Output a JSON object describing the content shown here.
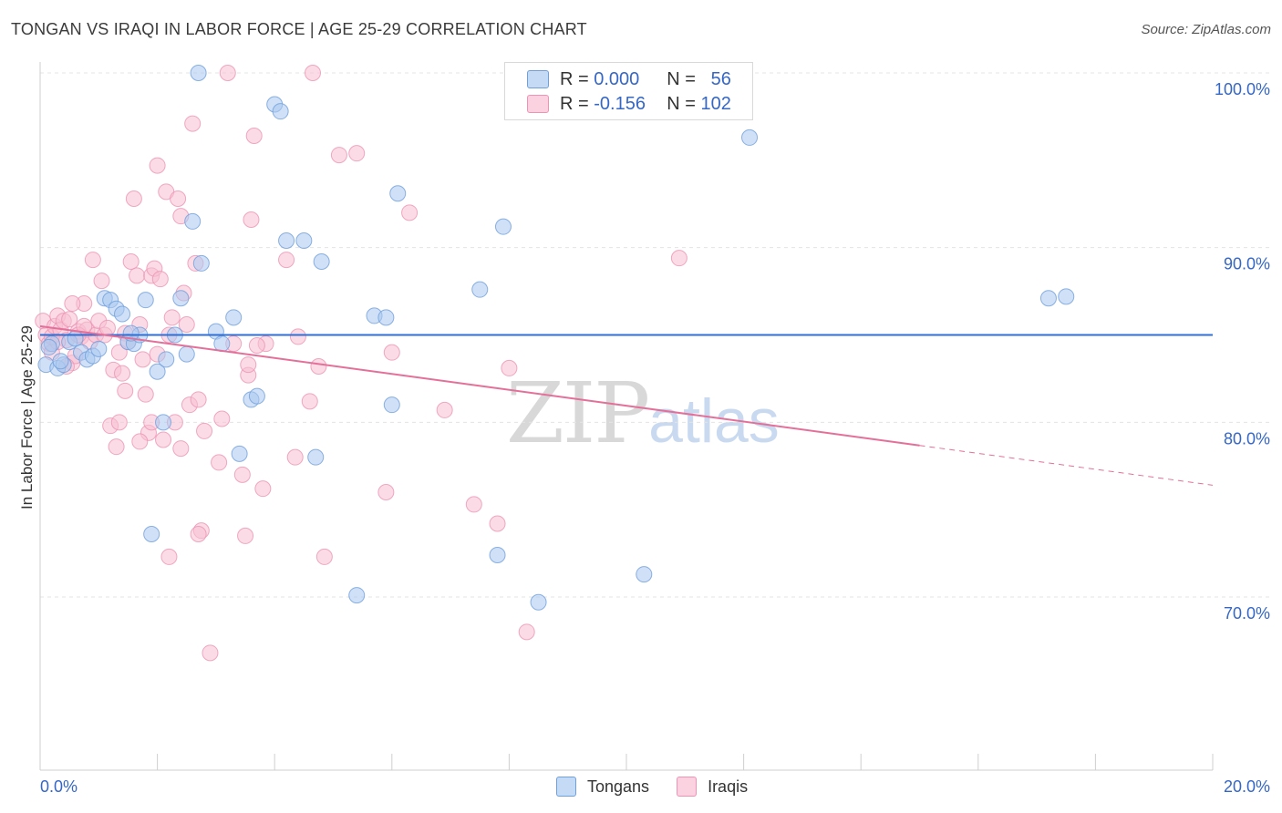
{
  "header": {
    "title": "TONGAN VS IRAQI IN LABOR FORCE | AGE 25-29 CORRELATION CHART",
    "source": "Source: ZipAtlas.com"
  },
  "legend": {
    "r_label": "R =",
    "n_label": "N =",
    "series": [
      {
        "name": "Tongans",
        "r": "0.000",
        "n": "56"
      },
      {
        "name": "Iraqis",
        "r": "-0.156",
        "n": "102"
      }
    ]
  },
  "watermark": {
    "zip": "ZIP",
    "atlas": "atlas"
  },
  "colors": {
    "tongans_fill": "#a9c8f0",
    "tongans_stroke": "#6f9fdc",
    "tongans_line": "#2f6fd6",
    "iraqis_fill": "#f7bfd2",
    "iraqis_stroke": "#ec94b4",
    "iraqis_line": "#e4709a",
    "grid": "#e4e4e4",
    "tick_label": "#3567c6"
  },
  "chart_data": {
    "type": "scatter",
    "title": "TONGAN VS IRAQI IN LABOR FORCE | AGE 25-29 CORRELATION CHART",
    "xlabel": "",
    "ylabel": "In Labor Force | Age 25-29",
    "xlim": [
      0,
      20
    ],
    "ylim": [
      60,
      102
    ],
    "x_tick_labels": [
      "0.0%",
      "20.0%"
    ],
    "y_ticks": [
      70,
      80,
      90,
      100
    ],
    "y_tick_labels": [
      "70.0%",
      "80.0%",
      "90.0%",
      "100.0%"
    ],
    "series": [
      {
        "name": "Tongans",
        "r": 0.0,
        "n": 56,
        "trend": {
          "x": [
            0,
            20
          ],
          "y": [
            85.0,
            85.0
          ],
          "dashed_from": null
        },
        "points": [
          [
            0.1,
            83.3
          ],
          [
            0.2,
            84.5
          ],
          [
            0.3,
            83.1
          ],
          [
            0.4,
            83.3
          ],
          [
            0.5,
            84.6
          ],
          [
            0.6,
            84.8
          ],
          [
            0.7,
            84.0
          ],
          [
            0.8,
            83.6
          ],
          [
            0.9,
            83.8
          ],
          [
            1.1,
            87.1
          ],
          [
            1.2,
            87.0
          ],
          [
            1.3,
            86.5
          ],
          [
            1.4,
            86.2
          ],
          [
            1.5,
            84.6
          ],
          [
            1.6,
            84.5
          ],
          [
            1.7,
            85.0
          ],
          [
            1.8,
            87.0
          ],
          [
            1.9,
            73.6
          ],
          [
            2.0,
            82.9
          ],
          [
            2.1,
            80.0
          ],
          [
            2.15,
            83.6
          ],
          [
            2.3,
            85.0
          ],
          [
            2.4,
            87.1
          ],
          [
            2.5,
            83.9
          ],
          [
            2.6,
            91.5
          ],
          [
            2.7,
            100.0
          ],
          [
            2.75,
            89.1
          ],
          [
            3.0,
            85.2
          ],
          [
            3.1,
            84.5
          ],
          [
            3.3,
            86.0
          ],
          [
            3.4,
            78.2
          ],
          [
            3.6,
            81.3
          ],
          [
            3.7,
            81.5
          ],
          [
            4.0,
            98.2
          ],
          [
            4.1,
            97.8
          ],
          [
            4.2,
            90.4
          ],
          [
            4.5,
            90.4
          ],
          [
            4.7,
            78.0
          ],
          [
            4.8,
            89.2
          ],
          [
            5.4,
            70.1
          ],
          [
            5.7,
            86.1
          ],
          [
            5.9,
            86.0
          ],
          [
            6.0,
            81.0
          ],
          [
            6.1,
            93.1
          ],
          [
            7.5,
            87.6
          ],
          [
            7.8,
            72.4
          ],
          [
            7.9,
            91.2
          ],
          [
            8.5,
            69.7
          ],
          [
            10.3,
            71.3
          ],
          [
            12.1,
            96.3
          ],
          [
            17.2,
            87.1
          ],
          [
            17.5,
            87.2
          ],
          [
            0.15,
            84.3
          ],
          [
            0.35,
            83.5
          ],
          [
            1.0,
            84.2
          ],
          [
            1.55,
            85.1
          ]
        ]
      },
      {
        "name": "Iraqis",
        "r": -0.156,
        "n": 102,
        "trend": {
          "x": [
            0,
            20
          ],
          "y": [
            85.5,
            76.4
          ],
          "dashed_from": 15.0
        },
        "points": [
          [
            0.05,
            85.8
          ],
          [
            0.1,
            85.0
          ],
          [
            0.15,
            84.5
          ],
          [
            0.2,
            84.9
          ],
          [
            0.25,
            85.5
          ],
          [
            0.3,
            86.1
          ],
          [
            0.35,
            85.3
          ],
          [
            0.4,
            85.8
          ],
          [
            0.45,
            84.7
          ],
          [
            0.5,
            85.9
          ],
          [
            0.55,
            83.4
          ],
          [
            0.6,
            83.8
          ],
          [
            0.65,
            85.2
          ],
          [
            0.7,
            84.9
          ],
          [
            0.75,
            86.8
          ],
          [
            0.8,
            85.3
          ],
          [
            0.85,
            84.6
          ],
          [
            0.9,
            89.3
          ],
          [
            0.95,
            85.0
          ],
          [
            1.0,
            85.8
          ],
          [
            1.05,
            88.1
          ],
          [
            1.1,
            85.0
          ],
          [
            1.15,
            85.4
          ],
          [
            1.2,
            79.8
          ],
          [
            1.25,
            83.0
          ],
          [
            1.3,
            78.6
          ],
          [
            1.35,
            84.0
          ],
          [
            1.4,
            82.8
          ],
          [
            1.45,
            85.1
          ],
          [
            1.5,
            84.6
          ],
          [
            1.55,
            89.2
          ],
          [
            1.6,
            92.8
          ],
          [
            1.65,
            88.4
          ],
          [
            1.7,
            85.6
          ],
          [
            1.75,
            83.6
          ],
          [
            1.8,
            81.6
          ],
          [
            1.85,
            79.4
          ],
          [
            1.9,
            88.4
          ],
          [
            1.95,
            88.8
          ],
          [
            2.0,
            94.7
          ],
          [
            2.05,
            88.2
          ],
          [
            2.1,
            79.0
          ],
          [
            2.15,
            93.2
          ],
          [
            2.2,
            85.0
          ],
          [
            2.25,
            86.0
          ],
          [
            2.3,
            80.0
          ],
          [
            2.35,
            92.8
          ],
          [
            2.4,
            91.8
          ],
          [
            2.45,
            87.4
          ],
          [
            2.5,
            85.6
          ],
          [
            2.55,
            81.0
          ],
          [
            2.6,
            97.1
          ],
          [
            2.65,
            89.1
          ],
          [
            2.7,
            81.3
          ],
          [
            2.75,
            73.8
          ],
          [
            2.8,
            79.5
          ],
          [
            2.9,
            66.8
          ],
          [
            3.05,
            77.7
          ],
          [
            3.1,
            80.2
          ],
          [
            3.3,
            84.5
          ],
          [
            3.45,
            77.0
          ],
          [
            3.55,
            82.7
          ],
          [
            3.6,
            91.6
          ],
          [
            3.65,
            96.4
          ],
          [
            3.8,
            76.2
          ],
          [
            3.85,
            84.5
          ],
          [
            4.2,
            89.3
          ],
          [
            4.35,
            78.0
          ],
          [
            4.6,
            81.2
          ],
          [
            4.75,
            83.2
          ],
          [
            4.85,
            72.3
          ],
          [
            5.1,
            95.3
          ],
          [
            5.4,
            95.4
          ],
          [
            5.9,
            76.0
          ],
          [
            6.3,
            92.0
          ],
          [
            6.9,
            80.7
          ],
          [
            7.4,
            75.3
          ],
          [
            7.8,
            74.2
          ],
          [
            8.0,
            83.1
          ],
          [
            8.3,
            68.0
          ],
          [
            10.9,
            89.4
          ],
          [
            3.5,
            73.5
          ],
          [
            3.2,
            100.0
          ],
          [
            4.65,
            100.0
          ],
          [
            2.7,
            73.6
          ],
          [
            1.7,
            78.9
          ],
          [
            2.2,
            72.3
          ],
          [
            0.2,
            84.0
          ],
          [
            0.45,
            83.2
          ],
          [
            0.65,
            85.0
          ],
          [
            1.35,
            80.0
          ],
          [
            3.55,
            83.3
          ],
          [
            2.0,
            83.9
          ],
          [
            1.45,
            81.8
          ],
          [
            0.55,
            86.8
          ],
          [
            0.75,
            85.5
          ],
          [
            3.7,
            84.4
          ],
          [
            6.0,
            84.0
          ],
          [
            0.3,
            84.6
          ],
          [
            2.4,
            78.5
          ],
          [
            1.9,
            80.0
          ],
          [
            4.4,
            84.9
          ]
        ]
      }
    ],
    "legend": [
      "Tongans",
      "Iraqis"
    ],
    "legend_position": "bottom-center",
    "grid": true
  }
}
